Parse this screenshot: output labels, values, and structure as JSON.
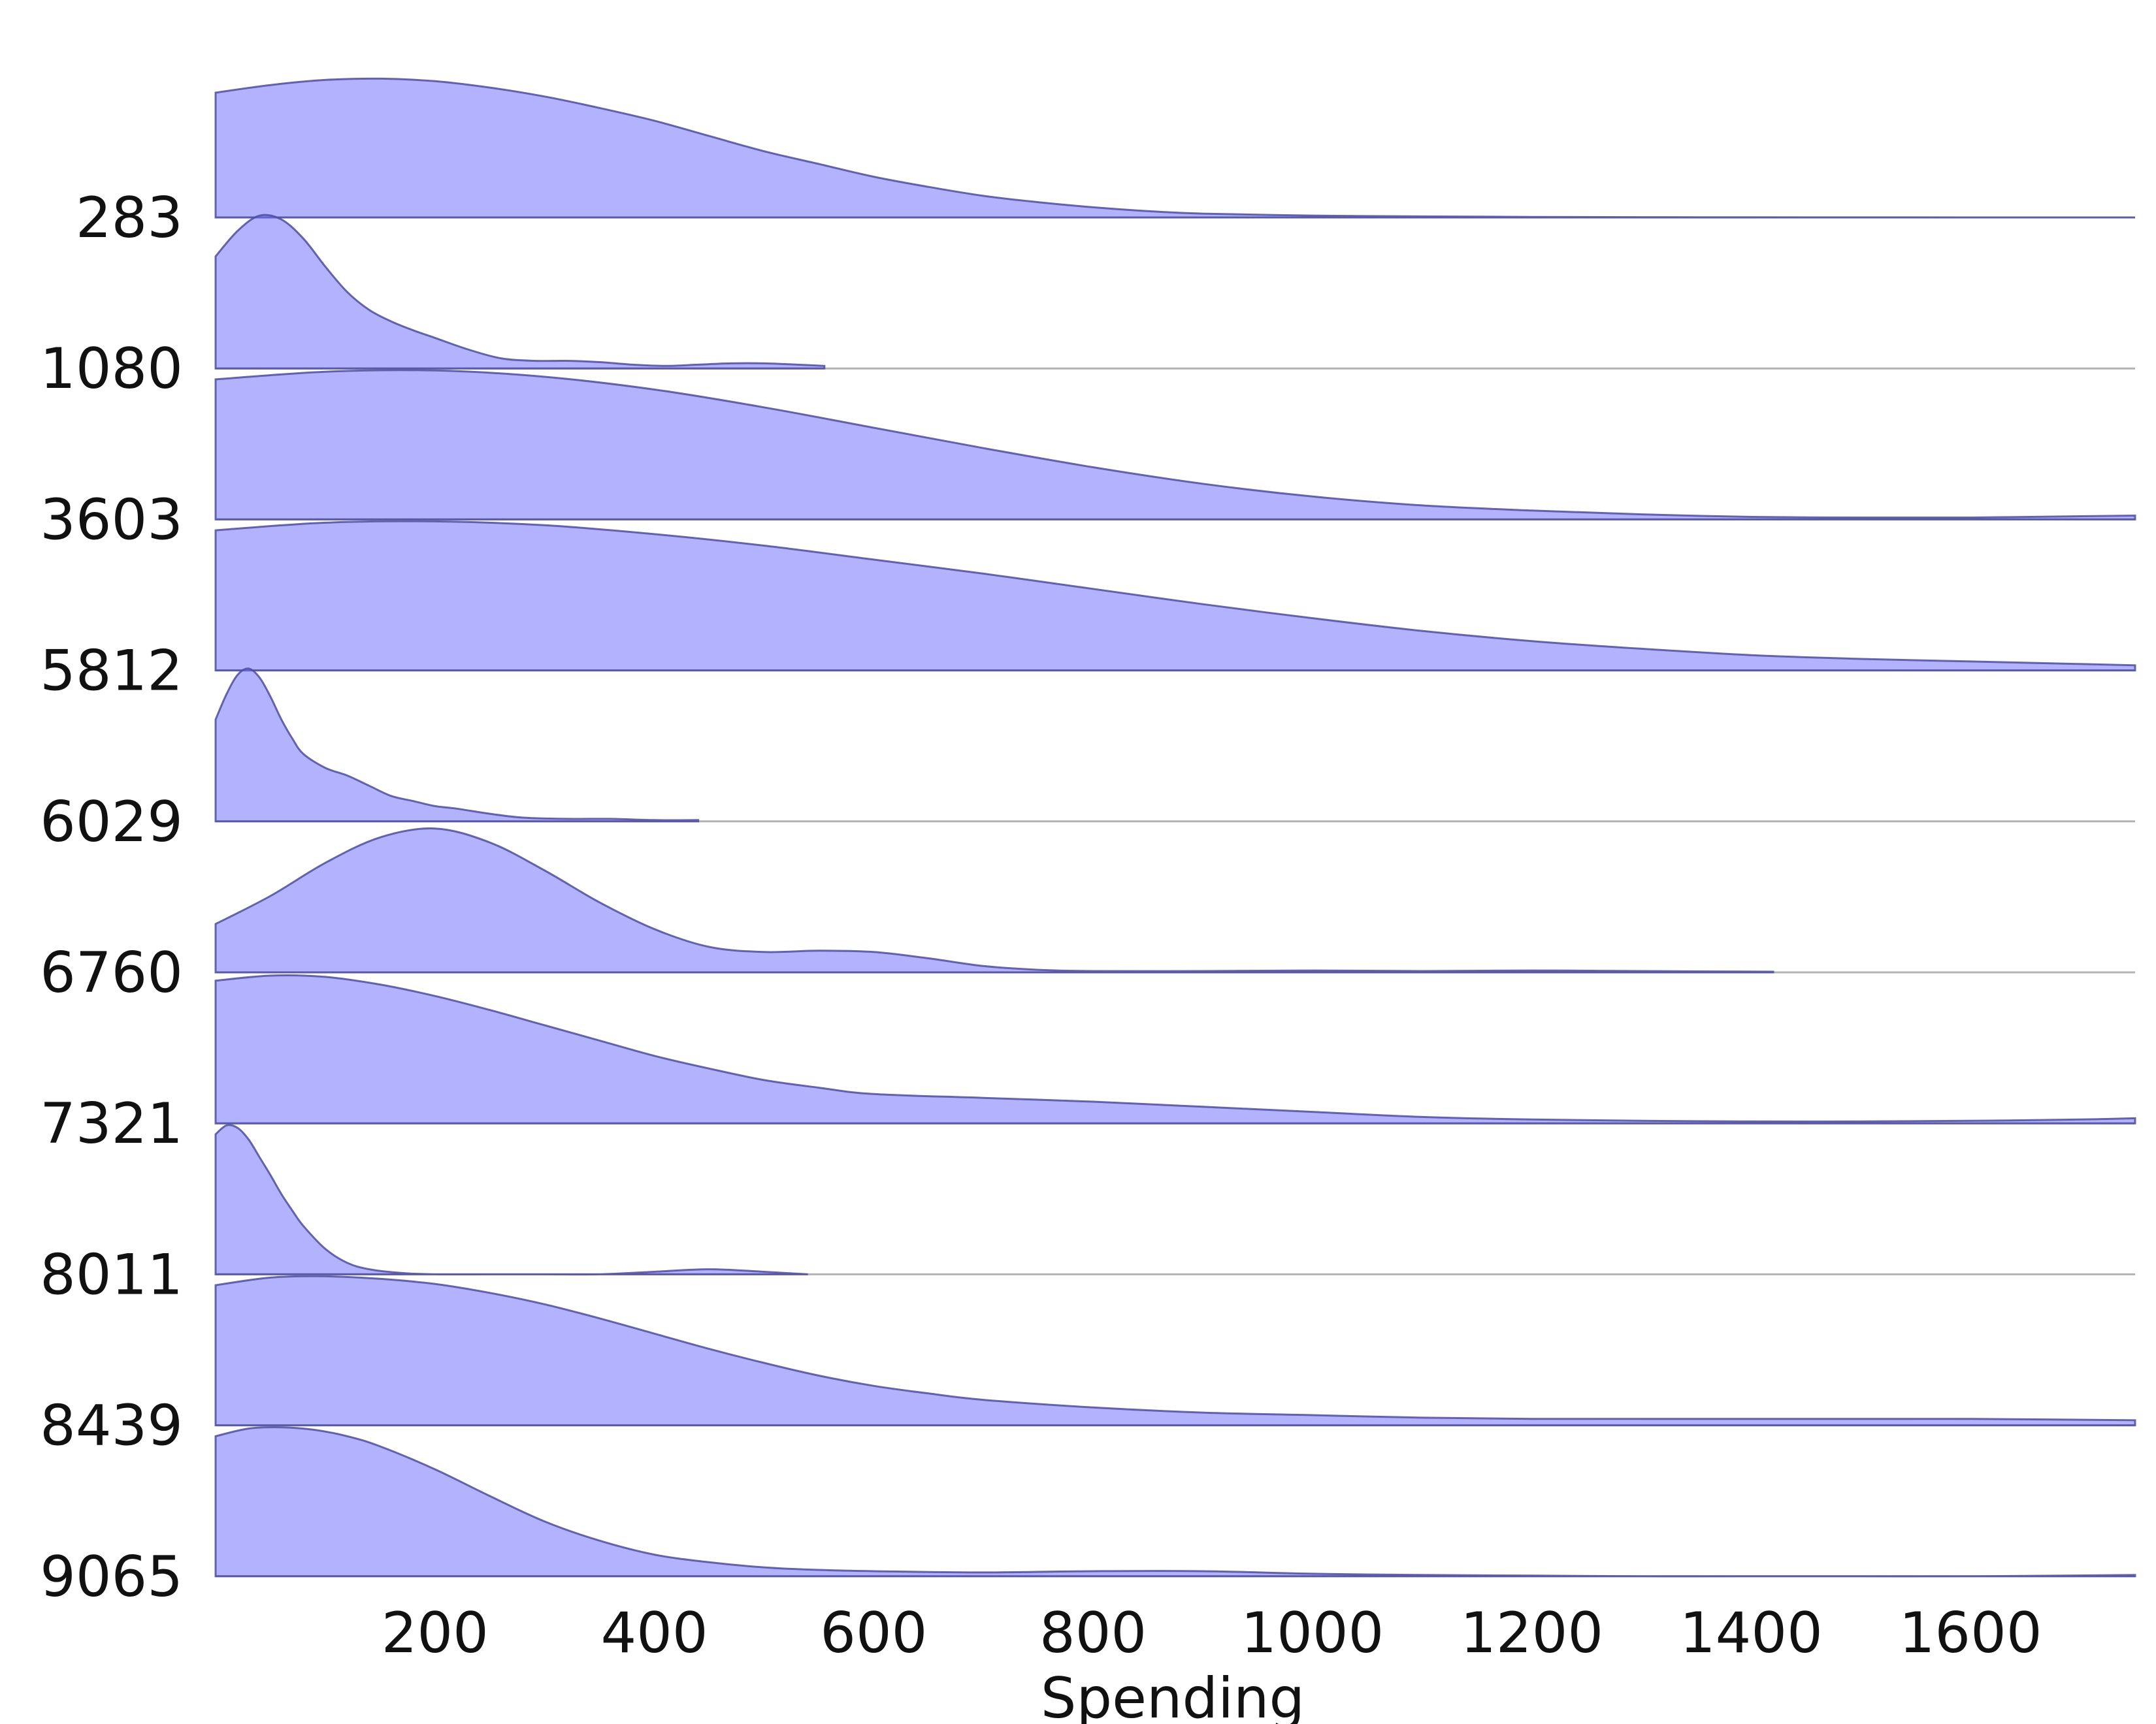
{
  "chart_data": {
    "type": "ridgeline",
    "title": "",
    "xlabel": "Spending",
    "ylabel": "",
    "xlim": [
      0,
      1750
    ],
    "x_ticks": [
      200,
      400,
      600,
      800,
      1000,
      1200,
      1400,
      1600
    ],
    "fill_color": "#6b6bff",
    "stroke_color": "#4d4d9e",
    "grid": false,
    "series": [
      {
        "name": "283",
        "x": [
          0,
          50,
          100,
          150,
          200,
          250,
          300,
          350,
          400,
          450,
          500,
          550,
          600,
          650,
          700,
          750,
          800,
          850,
          900,
          1000,
          1100,
          1200,
          1300,
          1400,
          1500,
          1600,
          1750
        ],
        "density": [
          0.98,
          1.04,
          1.08,
          1.09,
          1.07,
          1.02,
          0.95,
          0.86,
          0.76,
          0.64,
          0.52,
          0.42,
          0.32,
          0.24,
          0.17,
          0.12,
          0.08,
          0.05,
          0.03,
          0.015,
          0.008,
          0.004,
          0.002,
          0.001,
          0.0005,
          0.0002,
          0.0
        ]
      },
      {
        "name": "1080",
        "x": [
          0,
          20,
          40,
          60,
          80,
          100,
          120,
          140,
          160,
          180,
          200,
          230,
          260,
          290,
          320,
          350,
          380,
          410,
          440,
          470,
          500,
          530,
          555
        ],
        "density": [
          0.88,
          1.08,
          1.2,
          1.17,
          1.02,
          0.8,
          0.6,
          0.46,
          0.37,
          0.3,
          0.24,
          0.15,
          0.08,
          0.06,
          0.06,
          0.05,
          0.03,
          0.02,
          0.03,
          0.04,
          0.04,
          0.03,
          0.02
        ]
      },
      {
        "name": "3603",
        "x": [
          0,
          100,
          200,
          300,
          400,
          500,
          600,
          700,
          800,
          900,
          1000,
          1100,
          1200,
          1300,
          1400,
          1500,
          1600,
          1700,
          1750
        ],
        "density": [
          1.1,
          1.16,
          1.17,
          1.12,
          1.02,
          0.88,
          0.72,
          0.56,
          0.41,
          0.28,
          0.18,
          0.11,
          0.07,
          0.04,
          0.02,
          0.015,
          0.015,
          0.025,
          0.03
        ]
      },
      {
        "name": "5812",
        "x": [
          0,
          100,
          200,
          300,
          400,
          500,
          600,
          700,
          800,
          900,
          1000,
          1100,
          1200,
          1300,
          1400,
          1500,
          1600,
          1700,
          1750
        ],
        "density": [
          1.1,
          1.16,
          1.17,
          1.14,
          1.07,
          0.98,
          0.87,
          0.76,
          0.64,
          0.52,
          0.41,
          0.31,
          0.23,
          0.17,
          0.12,
          0.09,
          0.07,
          0.05,
          0.04
        ]
      },
      {
        "name": "6029",
        "x": [
          0,
          10,
          20,
          30,
          40,
          50,
          60,
          70,
          80,
          100,
          120,
          140,
          160,
          180,
          200,
          220,
          250,
          280,
          320,
          360,
          400,
          440
        ],
        "density": [
          0.8,
          1.0,
          1.15,
          1.2,
          1.13,
          0.98,
          0.8,
          0.65,
          0.53,
          0.42,
          0.36,
          0.28,
          0.2,
          0.16,
          0.12,
          0.1,
          0.06,
          0.03,
          0.02,
          0.02,
          0.01,
          0.01
        ]
      },
      {
        "name": "6760",
        "x": [
          0,
          50,
          100,
          150,
          200,
          250,
          300,
          350,
          400,
          450,
          500,
          550,
          600,
          650,
          700,
          750,
          800,
          900,
          1000,
          1100,
          1200,
          1300,
          1420
        ],
        "density": [
          0.38,
          0.6,
          0.86,
          1.06,
          1.13,
          1.02,
          0.8,
          0.55,
          0.34,
          0.2,
          0.16,
          0.17,
          0.16,
          0.11,
          0.05,
          0.02,
          0.01,
          0.01,
          0.015,
          0.01,
          0.015,
          0.01,
          0.005
        ]
      },
      {
        "name": "7321",
        "x": [
          0,
          50,
          100,
          150,
          200,
          250,
          300,
          350,
          400,
          450,
          500,
          550,
          600,
          700,
          800,
          900,
          1000,
          1100,
          1200,
          1300,
          1400,
          1500,
          1600,
          1700,
          1750
        ],
        "density": [
          1.12,
          1.16,
          1.15,
          1.09,
          1.0,
          0.89,
          0.77,
          0.65,
          0.53,
          0.43,
          0.34,
          0.28,
          0.23,
          0.2,
          0.17,
          0.13,
          0.09,
          0.05,
          0.03,
          0.02,
          0.015,
          0.015,
          0.02,
          0.03,
          0.04
        ]
      },
      {
        "name": "8011",
        "x": [
          0,
          10,
          20,
          30,
          40,
          50,
          60,
          70,
          80,
          100,
          120,
          140,
          170,
          200,
          250,
          300,
          350,
          400,
          450,
          500,
          540
        ],
        "density": [
          1.1,
          1.17,
          1.15,
          1.06,
          0.92,
          0.78,
          0.63,
          0.5,
          0.38,
          0.2,
          0.09,
          0.04,
          0.01,
          0.0,
          0.0,
          0.0,
          0.0,
          0.02,
          0.04,
          0.02,
          0.0
        ]
      },
      {
        "name": "8439",
        "x": [
          0,
          50,
          100,
          150,
          200,
          250,
          300,
          350,
          400,
          450,
          500,
          550,
          600,
          650,
          700,
          800,
          900,
          1000,
          1100,
          1200,
          1300,
          1400,
          1500,
          1600,
          1750
        ],
        "density": [
          1.1,
          1.16,
          1.17,
          1.15,
          1.11,
          1.04,
          0.95,
          0.84,
          0.72,
          0.6,
          0.49,
          0.39,
          0.31,
          0.25,
          0.2,
          0.14,
          0.1,
          0.08,
          0.06,
          0.05,
          0.05,
          0.05,
          0.05,
          0.05,
          0.04
        ]
      },
      {
        "name": "9065",
        "x": [
          0,
          30,
          60,
          90,
          120,
          150,
          200,
          250,
          300,
          350,
          400,
          450,
          500,
          550,
          600,
          700,
          800,
          900,
          1000,
          1100,
          1200,
          1300,
          1400,
          1500,
          1600,
          1750
        ],
        "density": [
          1.1,
          1.16,
          1.17,
          1.15,
          1.1,
          1.02,
          0.84,
          0.63,
          0.43,
          0.28,
          0.17,
          0.11,
          0.07,
          0.05,
          0.04,
          0.03,
          0.04,
          0.04,
          0.02,
          0.01,
          0.005,
          0.0,
          0.0,
          0.0,
          0.0,
          0.01
        ]
      }
    ]
  }
}
